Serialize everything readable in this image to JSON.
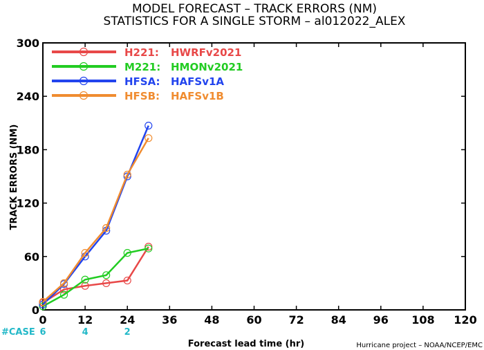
{
  "chart_data": {
    "type": "line",
    "title": "MODEL FORECAST – TRACK ERRORS (NM)",
    "subtitle": "STATISTICS FOR A SINGLE STORM – al012022_ALEX",
    "xlabel": "Forecast lead time (hr)",
    "ylabel": "TRACK ERRORS (NM)",
    "xlim": [
      0,
      120
    ],
    "ylim": [
      0,
      300
    ],
    "xticks": [
      0,
      12,
      24,
      36,
      48,
      60,
      72,
      84,
      96,
      108,
      120
    ],
    "yticks": [
      0,
      60,
      120,
      180,
      240,
      300
    ],
    "ytick_labels": [
      "0",
      "60",
      "120",
      "180",
      "240",
      "300"
    ],
    "grid": false,
    "legend_position": "top-left",
    "series": [
      {
        "label": "H221:",
        "name": "HWRFv2021",
        "color": "#e84848",
        "x": [
          0,
          6,
          12,
          18,
          24,
          30
        ],
        "y": [
          8,
          23,
          27,
          30,
          33,
          71
        ]
      },
      {
        "label": "M221:",
        "name": "HMONv2021",
        "color": "#22cc22",
        "x": [
          0,
          6,
          12,
          18,
          24,
          30
        ],
        "y": [
          4,
          17,
          34,
          39,
          64,
          69
        ]
      },
      {
        "label": "HFSA:",
        "name": "HAFSv1A",
        "color": "#2244ee",
        "x": [
          0,
          6,
          12,
          18,
          24,
          30
        ],
        "y": [
          6,
          29,
          60,
          89,
          150,
          207
        ]
      },
      {
        "label": "HFSB:",
        "name": "HAFSv1B",
        "color": "#f08c30",
        "x": [
          0,
          6,
          12,
          18,
          24,
          30
        ],
        "y": [
          9,
          30,
          64,
          92,
          152,
          193
        ]
      }
    ],
    "cases": {
      "label": "#CASE",
      "color": "#22b8c8",
      "x": [
        0,
        12,
        24
      ],
      "counts": [
        "6",
        "4",
        "2"
      ]
    },
    "credit": "Hurricane project – NOAA/NCEP/EMC"
  }
}
